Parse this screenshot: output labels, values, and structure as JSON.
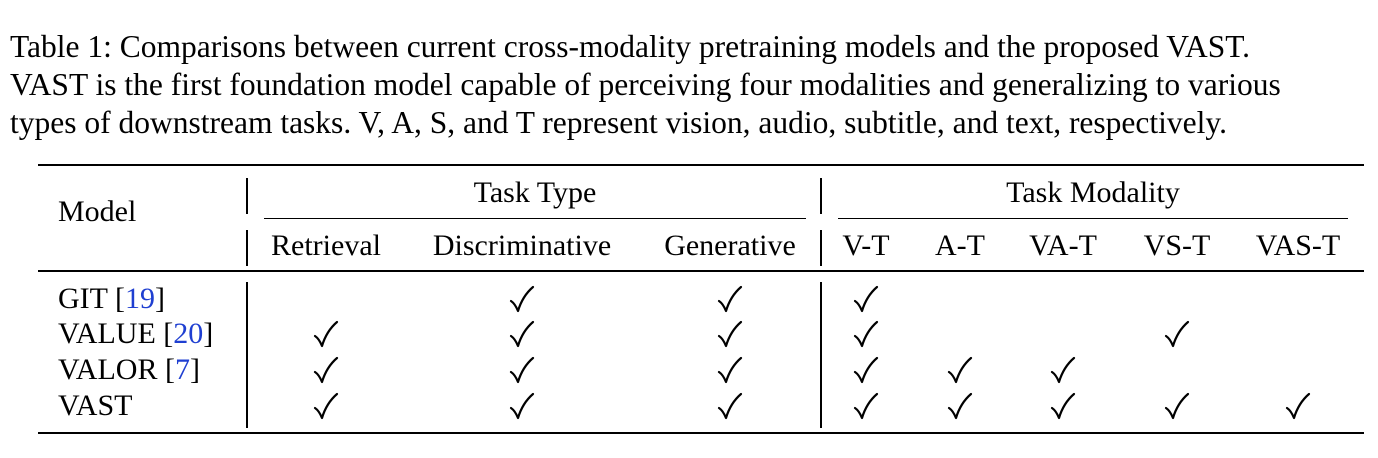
{
  "caption": {
    "line1": "Table 1: Comparisons between current cross-modality pretraining models and the proposed VAST.",
    "line2": "VAST is the first foundation model capable of perceiving four modalities and generalizing to various",
    "line3": "types of downstream tasks. V, A, S, and T represent vision, audio, subtitle, and text, respectively."
  },
  "header": {
    "model": "Model",
    "task_type": "Task Type",
    "task_modality": "Task Modality",
    "columns": [
      "Retrieval",
      "Discriminative",
      "Generative",
      "V-T",
      "A-T",
      "VA-T",
      "VS-T",
      "VAS-T"
    ]
  },
  "rows": [
    {
      "name": "GIT",
      "cite": "19",
      "checks": [
        false,
        true,
        true,
        true,
        false,
        false,
        false,
        false
      ]
    },
    {
      "name": "VALUE",
      "cite": "20",
      "checks": [
        true,
        true,
        true,
        true,
        false,
        false,
        true,
        false
      ]
    },
    {
      "name": "VALOR",
      "cite": "7",
      "checks": [
        true,
        true,
        true,
        true,
        true,
        true,
        false,
        false
      ]
    },
    {
      "name": "VAST",
      "cite": "",
      "checks": [
        true,
        true,
        true,
        true,
        true,
        true,
        true,
        true
      ]
    }
  ],
  "check_icon": "checkmark-icon"
}
